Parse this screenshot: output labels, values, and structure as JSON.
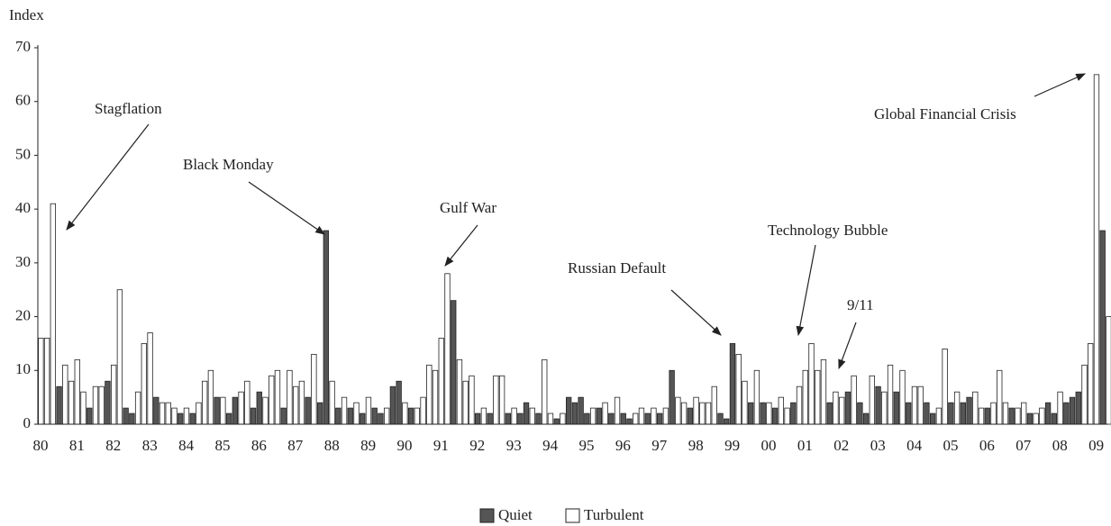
{
  "chart_data": {
    "type": "bar",
    "y_label": "Index",
    "categories": [
      "80",
      null,
      null,
      null,
      null,
      null,
      "81",
      null,
      null,
      null,
      null,
      null,
      "82",
      null,
      null,
      null,
      null,
      null,
      "83",
      null,
      null,
      null,
      null,
      null,
      "84",
      null,
      null,
      null,
      null,
      null,
      "85",
      null,
      null,
      null,
      null,
      null,
      "86",
      null,
      null,
      null,
      null,
      null,
      "87",
      null,
      null,
      null,
      null,
      null,
      "88",
      null,
      null,
      null,
      null,
      null,
      "89",
      null,
      null,
      null,
      null,
      null,
      "90",
      null,
      null,
      null,
      null,
      null,
      "91",
      null,
      null,
      null,
      null,
      null,
      "92",
      null,
      null,
      null,
      null,
      null,
      "93",
      null,
      null,
      null,
      null,
      null,
      "94",
      null,
      null,
      null,
      null,
      null,
      "95",
      null,
      null,
      null,
      null,
      null,
      "96",
      null,
      null,
      null,
      null,
      null,
      "97",
      null,
      null,
      null,
      null,
      null,
      "98",
      null,
      null,
      null,
      null,
      null,
      "99",
      null,
      null,
      null,
      null,
      null,
      "00",
      null,
      null,
      null,
      null,
      null,
      "01",
      null,
      null,
      null,
      null,
      null,
      "02",
      null,
      null,
      null,
      null,
      null,
      "03",
      null,
      null,
      null,
      null,
      null,
      "04",
      null,
      null,
      null,
      null,
      null,
      "05",
      null,
      null,
      null,
      null,
      null,
      "06",
      null,
      null,
      null,
      null,
      null,
      "07",
      null,
      null,
      null,
      null,
      null,
      "08",
      null,
      null,
      null,
      null,
      null,
      "09",
      null,
      null
    ],
    "series": [
      {
        "name": "Quiet",
        "color": "#555555",
        "values": [
          null,
          null,
          null,
          7,
          null,
          null,
          null,
          null,
          3,
          null,
          null,
          8,
          null,
          null,
          3,
          2,
          null,
          null,
          null,
          5,
          null,
          null,
          null,
          2,
          null,
          2,
          null,
          null,
          null,
          5,
          null,
          2,
          5,
          null,
          null,
          3,
          6,
          null,
          null,
          null,
          3,
          null,
          null,
          null,
          5,
          null,
          4,
          36,
          null,
          3,
          null,
          3,
          null,
          2,
          null,
          3,
          2,
          null,
          7,
          8,
          null,
          3,
          null,
          null,
          null,
          null,
          null,
          null,
          23,
          null,
          null,
          null,
          2,
          null,
          2,
          null,
          null,
          2,
          null,
          2,
          4,
          null,
          2,
          null,
          null,
          1,
          null,
          5,
          4,
          5,
          2,
          null,
          3,
          null,
          2,
          null,
          2,
          1,
          null,
          null,
          2,
          null,
          2,
          null,
          10,
          null,
          null,
          3,
          null,
          null,
          null,
          null,
          2,
          1,
          15,
          null,
          null,
          4,
          null,
          4,
          null,
          3,
          null,
          null,
          4,
          null,
          null,
          null,
          null,
          null,
          4,
          null,
          null,
          6,
          null,
          4,
          2,
          null,
          7,
          null,
          null,
          6,
          null,
          4,
          null,
          null,
          4,
          2,
          null,
          null,
          4,
          null,
          4,
          5,
          null,
          null,
          3,
          null,
          null,
          null,
          3,
          null,
          null,
          2,
          null,
          null,
          4,
          2,
          null,
          4,
          5,
          6,
          null,
          null,
          null,
          36,
          null
        ]
      },
      {
        "name": "Turbulent",
        "color": "#ffffff",
        "values": [
          16,
          16,
          41,
          null,
          11,
          8,
          12,
          6,
          null,
          7,
          7,
          null,
          11,
          25,
          null,
          null,
          6,
          15,
          17,
          null,
          4,
          4,
          3,
          null,
          3,
          null,
          4,
          8,
          10,
          null,
          5,
          null,
          null,
          6,
          8,
          null,
          null,
          5,
          9,
          10,
          null,
          10,
          7,
          8,
          null,
          13,
          null,
          null,
          8,
          null,
          5,
          null,
          4,
          null,
          5,
          null,
          null,
          3,
          null,
          null,
          4,
          null,
          3,
          5,
          11,
          10,
          16,
          28,
          null,
          12,
          8,
          9,
          null,
          3,
          null,
          9,
          9,
          null,
          3,
          null,
          null,
          3,
          null,
          12,
          2,
          null,
          2,
          null,
          null,
          null,
          null,
          3,
          null,
          4,
          null,
          5,
          null,
          null,
          2,
          3,
          null,
          3,
          null,
          3,
          null,
          5,
          4,
          null,
          5,
          4,
          4,
          7,
          null,
          null,
          null,
          13,
          8,
          null,
          10,
          null,
          4,
          null,
          5,
          3,
          null,
          7,
          10,
          15,
          10,
          12,
          null,
          6,
          5,
          null,
          9,
          null,
          null,
          9,
          null,
          6,
          11,
          null,
          10,
          null,
          7,
          7,
          null,
          null,
          3,
          14,
          null,
          6,
          null,
          null,
          6,
          3,
          null,
          4,
          10,
          4,
          null,
          3,
          4,
          null,
          2,
          3,
          null,
          null,
          6,
          null,
          null,
          null,
          11,
          15,
          65,
          null,
          20
        ]
      }
    ],
    "ylim": [
      0,
      70
    ],
    "yticks": [
      0,
      10,
      20,
      30,
      40,
      50,
      60,
      70
    ],
    "annotations": [
      "Stagflation",
      "Black Monday",
      "Gulf War",
      "Russian Default",
      "Technology Bubble",
      "9/11",
      "Global Financial Crisis"
    ]
  }
}
